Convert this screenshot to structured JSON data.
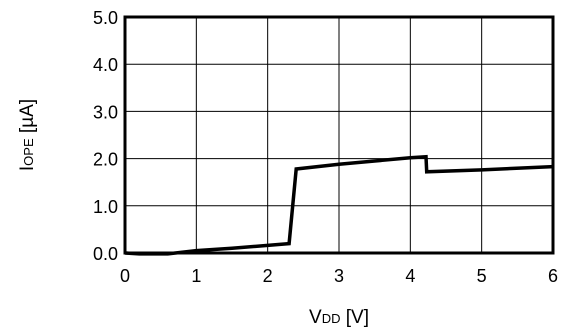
{
  "chart_data": {
    "type": "line",
    "title": "",
    "xlabel": {
      "main": "V",
      "sub": "DD",
      "unit": " [V]"
    },
    "ylabel": {
      "main": "I",
      "sub": "OPE",
      "unit": " [µA]"
    },
    "xlim": [
      0,
      6
    ],
    "ylim": [
      0,
      5
    ],
    "xticks": [
      "0",
      "1",
      "2",
      "3",
      "4",
      "5",
      "6"
    ],
    "yticks": [
      "0.0",
      "1.0",
      "2.0",
      "3.0",
      "4.0",
      "5.0"
    ],
    "grid": true,
    "legend": "none",
    "line_color": "#000000",
    "series": [
      {
        "x": [
          0.0,
          0.2,
          0.6,
          1.0,
          1.5,
          2.0,
          2.3,
          2.4,
          3.0,
          3.5,
          4.0,
          4.22,
          4.23,
          5.0,
          6.0
        ],
        "y": [
          0.0,
          -0.02,
          -0.02,
          0.05,
          0.1,
          0.16,
          0.2,
          1.78,
          1.88,
          1.95,
          2.02,
          2.04,
          1.72,
          1.76,
          1.83
        ]
      }
    ]
  }
}
